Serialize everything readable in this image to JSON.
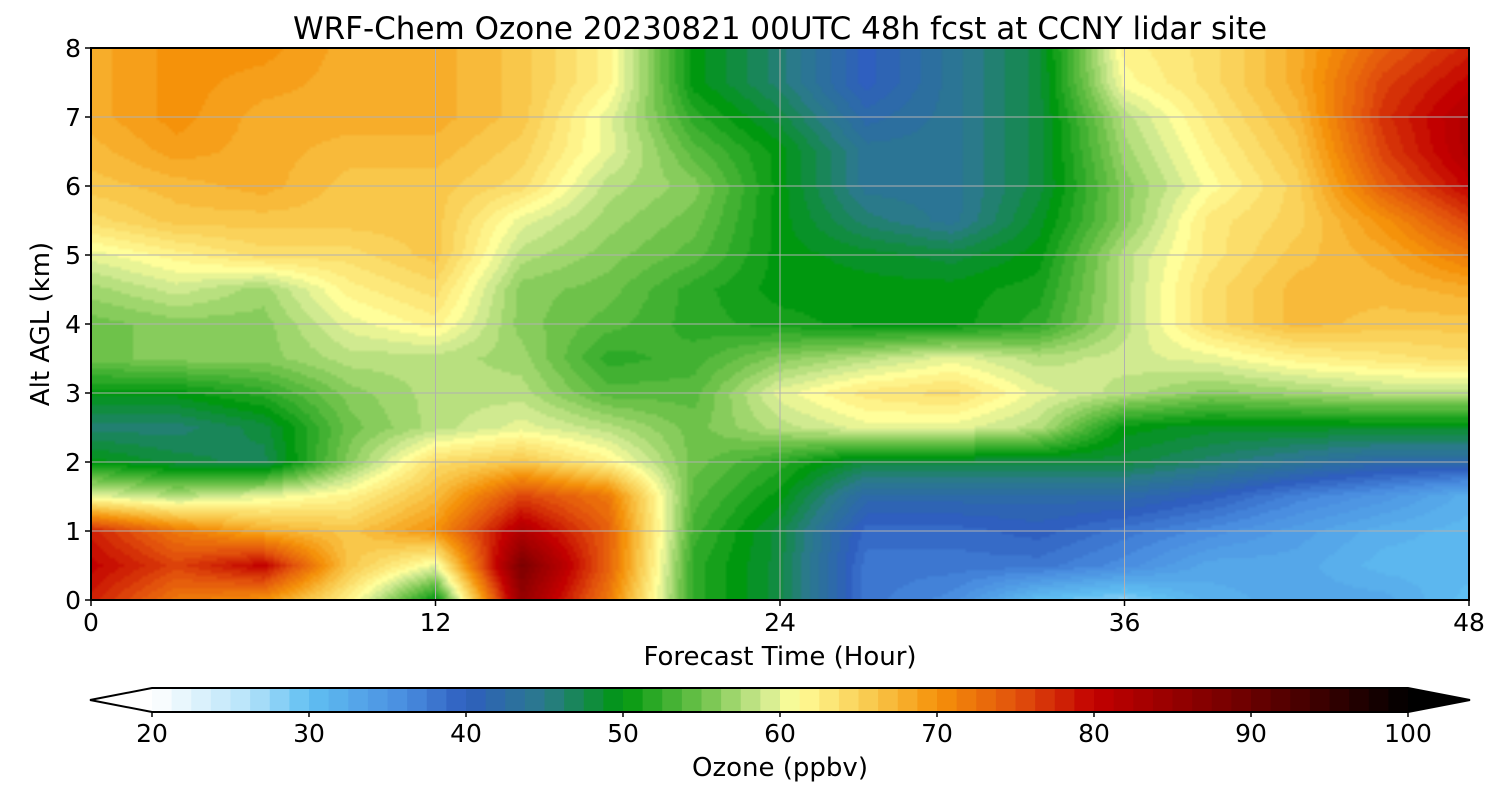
{
  "chart_data": {
    "type": "heatmap",
    "title": "WRF-Chem Ozone  20230821 00UTC 48h fcst at CCNY lidar site",
    "xlabel": "Forecast Time (Hour)",
    "ylabel": "Alt AGL (km)",
    "xlim": [
      0,
      48
    ],
    "ylim": [
      0,
      8
    ],
    "xticks": [
      0,
      12,
      24,
      36,
      48
    ],
    "yticks": [
      0,
      1,
      2,
      3,
      4,
      5,
      6,
      7,
      8
    ],
    "grid": true,
    "x": [
      0,
      3,
      6,
      9,
      12,
      15,
      18,
      21,
      24,
      27,
      30,
      33,
      36,
      39,
      42,
      45,
      48
    ],
    "y": [
      0,
      0.5,
      1,
      1.5,
      2,
      2.5,
      3,
      3.5,
      4,
      4.5,
      5,
      5.5,
      6,
      6.5,
      7,
      7.5,
      8
    ],
    "z": [
      [
        78,
        72,
        70,
        62,
        50,
        85,
        72,
        52,
        48,
        38,
        36,
        30,
        28,
        32,
        33,
        33,
        30
      ],
      [
        80,
        76,
        80,
        66,
        60,
        88,
        74,
        52,
        48,
        38,
        38,
        38,
        36,
        33,
        33,
        31,
        31
      ],
      [
        78,
        72,
        68,
        66,
        70,
        82,
        74,
        53,
        48,
        39,
        39,
        40,
        38,
        36,
        34,
        32,
        31
      ],
      [
        60,
        58,
        60,
        62,
        67,
        76,
        72,
        54,
        50,
        42,
        42,
        42,
        42,
        40,
        37,
        35,
        32
      ],
      [
        50,
        48,
        47,
        56,
        64,
        66,
        62,
        55,
        52,
        48,
        48,
        48,
        48,
        46,
        44,
        42,
        42
      ],
      [
        46,
        46,
        48,
        55,
        58,
        60,
        58,
        55,
        58,
        60,
        60,
        58,
        50,
        49,
        49,
        49,
        49
      ],
      [
        50,
        50,
        52,
        56,
        58,
        58,
        54,
        54,
        60,
        63,
        64,
        60,
        58,
        56,
        57,
        58,
        58
      ],
      [
        55,
        56,
        56,
        58,
        58,
        57,
        52,
        53,
        56,
        58,
        60,
        58,
        59,
        60,
        62,
        63,
        64
      ],
      [
        55,
        56,
        56,
        60,
        62,
        56,
        54,
        52,
        51,
        50,
        50,
        52,
        58,
        64,
        67,
        66,
        66
      ],
      [
        57,
        59,
        57,
        62,
        64,
        56,
        55,
        52,
        50,
        50,
        50,
        51,
        58,
        64,
        67,
        67,
        68
      ],
      [
        60,
        62,
        64,
        64,
        66,
        58,
        56,
        54,
        50,
        49,
        48,
        50,
        58,
        63,
        66,
        68,
        72
      ],
      [
        64,
        66,
        66,
        66,
        66,
        60,
        57,
        55,
        50,
        46,
        44,
        49,
        56,
        63,
        65,
        70,
        76
      ],
      [
        66,
        67,
        68,
        66,
        66,
        64,
        58,
        56,
        50,
        44,
        44,
        48,
        56,
        61,
        65,
        74,
        80
      ],
      [
        67,
        69,
        68,
        67,
        67,
        65,
        60,
        54,
        50,
        44,
        44,
        48,
        57,
        62,
        66,
        76,
        82
      ],
      [
        68,
        70,
        68,
        68,
        68,
        66,
        60,
        52,
        48,
        42,
        44,
        48,
        58,
        63,
        67,
        77,
        82
      ],
      [
        68,
        70,
        69,
        68,
        68,
        66,
        62,
        50,
        46,
        40,
        44,
        48,
        61,
        64,
        68,
        76,
        80
      ],
      [
        68,
        70,
        70,
        68,
        68,
        66,
        62,
        50,
        46,
        40,
        44,
        48,
        62,
        64,
        68,
        74,
        78
      ]
    ],
    "colorbar": {
      "label": "Ozone  (ppbv)",
      "min": 20,
      "max": 100,
      "ticks": [
        20,
        30,
        40,
        50,
        60,
        70,
        80,
        90,
        100
      ],
      "extend": "both",
      "stops": [
        [
          20,
          "#ffffff"
        ],
        [
          26,
          "#b8e4fa"
        ],
        [
          30,
          "#60bff2"
        ],
        [
          36,
          "#4a8ee0"
        ],
        [
          40,
          "#2f5fbf"
        ],
        [
          45,
          "#2a7a8a"
        ],
        [
          50,
          "#00980f"
        ],
        [
          55,
          "#6ec24a"
        ],
        [
          59,
          "#d0ea90"
        ],
        [
          61,
          "#fffe9a"
        ],
        [
          66,
          "#f9c74a"
        ],
        [
          70,
          "#f5920a"
        ],
        [
          75,
          "#e2520c"
        ],
        [
          80,
          "#c20000"
        ],
        [
          90,
          "#6a0000"
        ],
        [
          100,
          "#000000"
        ]
      ]
    }
  }
}
